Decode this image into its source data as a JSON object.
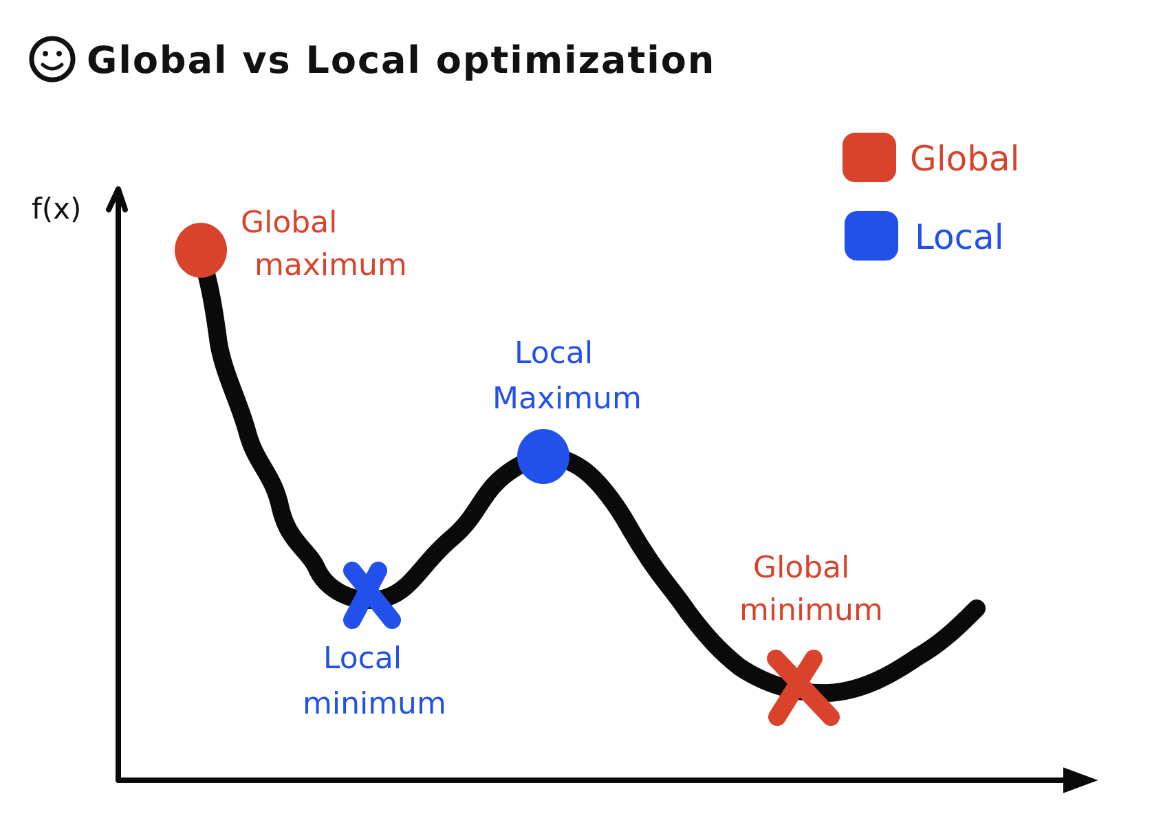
{
  "title": "Global vs Local optimization",
  "axes": {
    "y_label": "f(x)"
  },
  "legend": {
    "items": [
      {
        "label": "Global",
        "color": "#d9432c"
      },
      {
        "label": "Local",
        "color": "#2250ea"
      }
    ]
  },
  "annotations": {
    "global_maximum": {
      "line1": "Global",
      "line2": "maximum"
    },
    "local_maximum": {
      "line1": "Local",
      "line2": "Maximum"
    },
    "local_minimum": {
      "line1": "Local",
      "line2": "minimum"
    },
    "global_minimum": {
      "line1": "Global",
      "line2": "minimum"
    }
  },
  "colors": {
    "global": "#d9432c",
    "local": "#2250ea",
    "ink": "#0a0a0a"
  },
  "icons": {
    "title_icon": "smiley-face-icon"
  }
}
